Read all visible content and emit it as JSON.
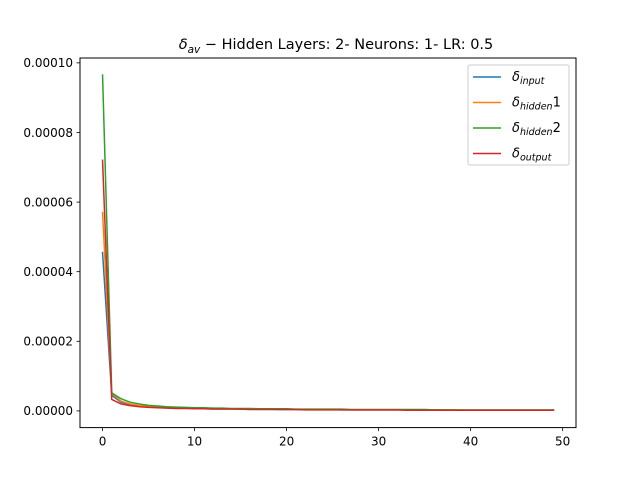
{
  "chart_data": {
    "type": "line",
    "title": {
      "symbol": "δ",
      "sub": "av",
      "rest": " − Hidden Layers: 2- Neurons: 1- LR: 0.5"
    },
    "xlabel": "",
    "ylabel": "",
    "xlim": [
      -2.45,
      51.45
    ],
    "ylim": [
      -4.8e-06,
      0.0001014
    ],
    "x_ticks": [
      0,
      10,
      20,
      30,
      40,
      50
    ],
    "x_tick_labels": [
      "0",
      "10",
      "20",
      "30",
      "40",
      "50"
    ],
    "y_ticks": [
      0,
      2e-05,
      4e-05,
      6e-05,
      8e-05,
      0.0001
    ],
    "y_tick_labels": [
      "0.00000",
      "0.00002",
      "0.00004",
      "0.00006",
      "0.00008",
      "0.00010"
    ],
    "grid": false,
    "legend_position": "top-right",
    "x": [
      0,
      1,
      2,
      3,
      4,
      5,
      6,
      7,
      8,
      9,
      10,
      11,
      12,
      13,
      14,
      15,
      16,
      17,
      18,
      19,
      20,
      21,
      22,
      23,
      24,
      25,
      26,
      27,
      28,
      29,
      30,
      31,
      32,
      33,
      34,
      35,
      36,
      37,
      38,
      39,
      40,
      41,
      42,
      43,
      44,
      45,
      46,
      47,
      48,
      49
    ],
    "series": [
      {
        "name": "δ input",
        "legend_symbol": "δ",
        "legend_sub": "input",
        "legend_suffix": "",
        "color": "#1f77b4",
        "values": [
          4.55e-05,
          4.5e-06,
          2.5e-06,
          1.8e-06,
          1.4e-06,
          1.2e-06,
          1e-06,
          9e-07,
          8e-07,
          8e-07,
          7e-07,
          7e-07,
          6e-07,
          6e-07,
          6e-07,
          5e-07,
          5e-07,
          5e-07,
          5e-07,
          4e-07,
          4e-07,
          4e-07,
          4e-07,
          4e-07,
          4e-07,
          4e-07,
          3e-07,
          3e-07,
          3e-07,
          3e-07,
          3e-07,
          3e-07,
          3e-07,
          3e-07,
          3e-07,
          3e-07,
          3e-07,
          2e-07,
          2e-07,
          2e-07,
          2e-07,
          2e-07,
          2e-07,
          2e-07,
          2e-07,
          2e-07,
          2e-07,
          2e-07,
          2e-07,
          2e-07
        ]
      },
      {
        "name": "δ hidden 1",
        "legend_symbol": "δ",
        "legend_sub": "hidden",
        "legend_suffix": "1",
        "color": "#ff7f0e",
        "values": [
          5.7e-05,
          5e-06,
          2.8e-06,
          2e-06,
          1.6e-06,
          1.3e-06,
          1.1e-06,
          1e-06,
          9e-07,
          8e-07,
          8e-07,
          7e-07,
          7e-07,
          6e-07,
          6e-07,
          6e-07,
          5e-07,
          5e-07,
          5e-07,
          5e-07,
          5e-07,
          4e-07,
          4e-07,
          4e-07,
          4e-07,
          4e-07,
          4e-07,
          3e-07,
          3e-07,
          3e-07,
          3e-07,
          3e-07,
          3e-07,
          3e-07,
          3e-07,
          3e-07,
          3e-07,
          3e-07,
          3e-07,
          2e-07,
          2e-07,
          2e-07,
          2e-07,
          2e-07,
          2e-07,
          2e-07,
          2e-07,
          2e-07,
          2e-07,
          2e-07
        ]
      },
      {
        "name": "δ hidden 2",
        "legend_symbol": "δ",
        "legend_sub": "hidden",
        "legend_suffix": "2",
        "color": "#2ca02c",
        "values": [
          9.65e-05,
          5.2e-06,
          3.5e-06,
          2.5e-06,
          2e-06,
          1.6e-06,
          1.4e-06,
          1.2e-06,
          1.1e-06,
          1e-06,
          9e-07,
          9e-07,
          8e-07,
          8e-07,
          7e-07,
          7e-07,
          7e-07,
          6e-07,
          6e-07,
          6e-07,
          6e-07,
          5e-07,
          5e-07,
          5e-07,
          5e-07,
          5e-07,
          5e-07,
          4e-07,
          4e-07,
          4e-07,
          4e-07,
          4e-07,
          4e-07,
          4e-07,
          4e-07,
          4e-07,
          3e-07,
          3e-07,
          3e-07,
          3e-07,
          3e-07,
          3e-07,
          3e-07,
          3e-07,
          3e-07,
          3e-07,
          3e-07,
          3e-07,
          3e-07,
          3e-07
        ]
      },
      {
        "name": "δ output",
        "legend_symbol": "δ",
        "legend_sub": "output",
        "legend_suffix": "",
        "color": "#d62728",
        "values": [
          7.2e-05,
          3.3e-06,
          2e-06,
          1.5e-06,
          1.2e-06,
          1e-06,
          9e-07,
          8e-07,
          7e-07,
          7e-07,
          6e-07,
          6e-07,
          5e-07,
          5e-07,
          5e-07,
          5e-07,
          4e-07,
          4e-07,
          4e-07,
          4e-07,
          4e-07,
          4e-07,
          3e-07,
          3e-07,
          3e-07,
          3e-07,
          3e-07,
          3e-07,
          3e-07,
          3e-07,
          3e-07,
          3e-07,
          3e-07,
          2e-07,
          2e-07,
          2e-07,
          2e-07,
          2e-07,
          2e-07,
          2e-07,
          2e-07,
          2e-07,
          2e-07,
          2e-07,
          2e-07,
          2e-07,
          2e-07,
          2e-07,
          2e-07,
          2e-07
        ]
      }
    ]
  }
}
